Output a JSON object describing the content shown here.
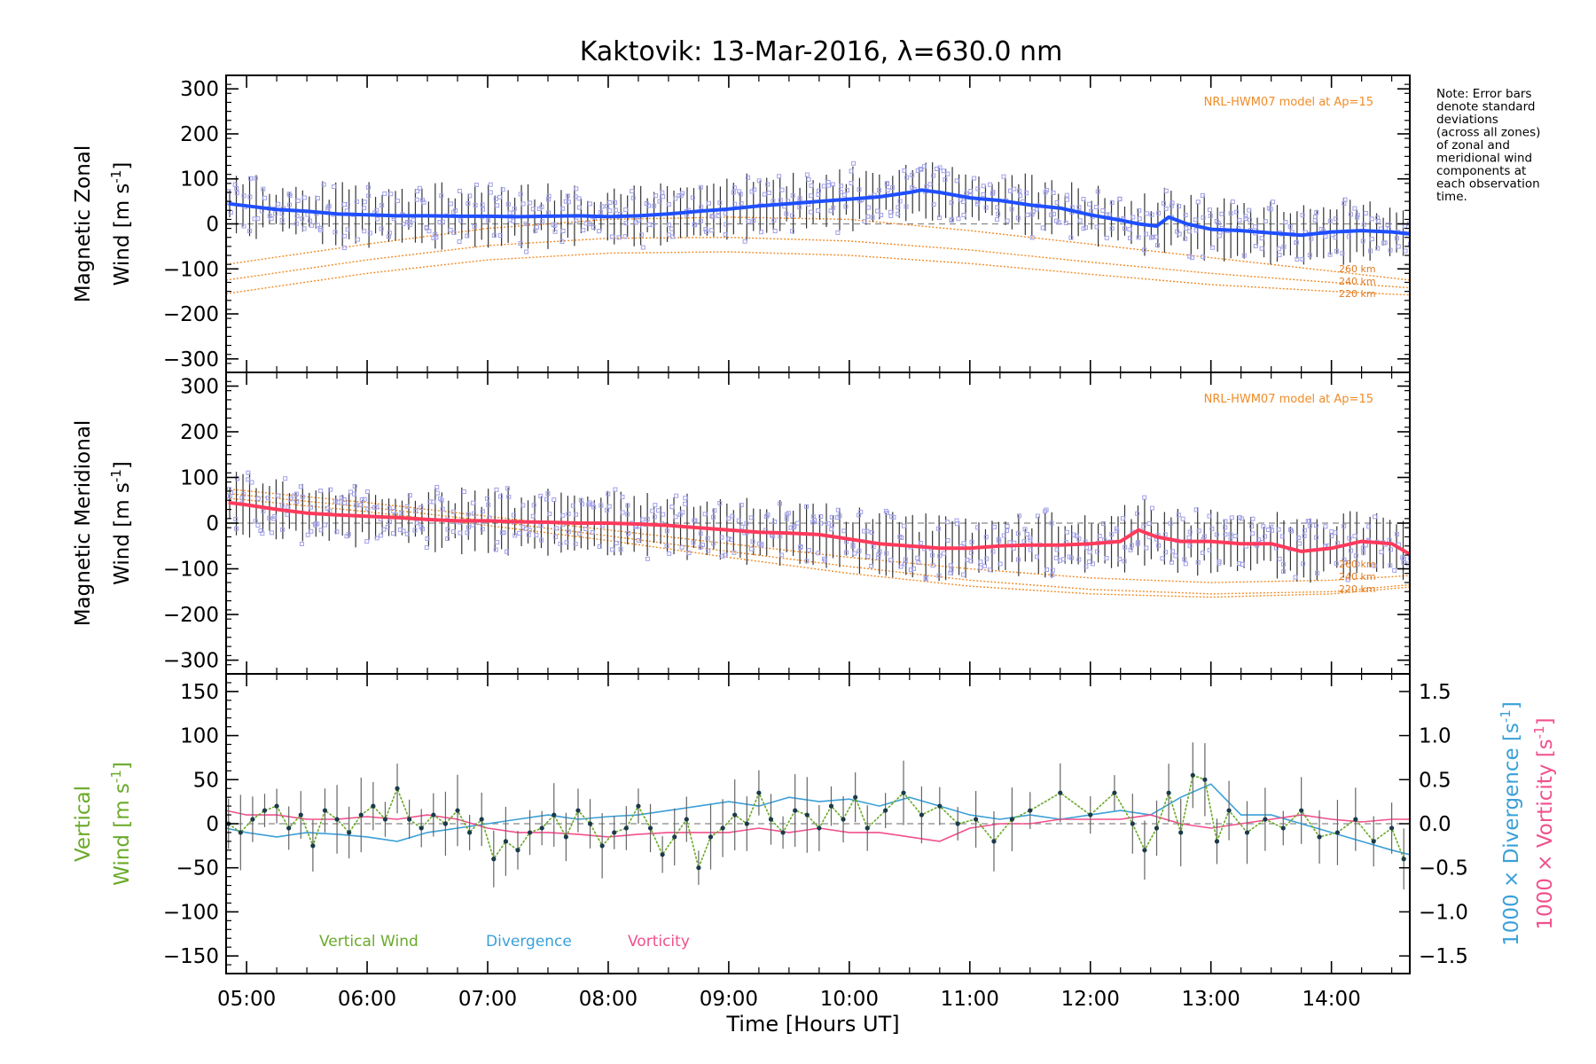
{
  "title": "Kaktovik: 13-Mar-2016, λ=630.0 nm",
  "note": [
    "Note: Error bars",
    "denote standard",
    "deviations",
    "(across all zones)",
    "of zonal and",
    "meridional wind",
    "components at",
    "each observation",
    "time."
  ],
  "colors": {
    "zonal": "#1f4fff",
    "meridional": "#ff3a5c",
    "vertical": "#6aaa2a",
    "divergence": "#3aa0d8",
    "vorticity": "#f0508c",
    "model": "#f08c28",
    "samples": "#a0a0e8",
    "errorbar": "#333333"
  },
  "x_axis": {
    "label": "Time [Hours UT]",
    "range": [
      4.83,
      14.65
    ],
    "ticks": [
      5,
      6,
      7,
      8,
      9,
      10,
      11,
      12,
      13,
      14
    ],
    "tick_labels": [
      "05:00",
      "06:00",
      "07:00",
      "08:00",
      "09:00",
      "10:00",
      "11:00",
      "12:00",
      "13:00",
      "14:00"
    ]
  },
  "chart_data": [
    {
      "id": "zonal",
      "type": "line",
      "ylabel_line1": "Magnetic Zonal",
      "ylabel_line2": "Wind [m s",
      "ylabel_sup": "-1",
      "ylabel_close": "]",
      "ylim": [
        -330,
        330
      ],
      "yticks": [
        -300,
        -200,
        -100,
        0,
        100,
        200,
        300
      ],
      "model_label": "NRL-HWM07 model at Ap=15",
      "altitudes": [
        "260 km",
        "240 km",
        "220 km"
      ],
      "series_x": [
        4.85,
        5.0,
        5.25,
        5.5,
        5.75,
        6.0,
        6.25,
        6.5,
        6.75,
        7.0,
        7.25,
        7.5,
        7.75,
        8.0,
        8.25,
        8.5,
        8.75,
        9.0,
        9.25,
        9.5,
        9.75,
        10.0,
        10.25,
        10.5,
        10.6,
        10.75,
        11.0,
        11.25,
        11.5,
        11.75,
        12.0,
        12.25,
        12.4,
        12.55,
        12.65,
        12.8,
        13.0,
        13.25,
        13.5,
        13.75,
        14.0,
        14.25,
        14.5,
        14.65
      ],
      "series_y": [
        45,
        40,
        32,
        28,
        22,
        20,
        18,
        18,
        17,
        17,
        16,
        17,
        18,
        16,
        18,
        22,
        28,
        33,
        40,
        45,
        50,
        55,
        60,
        70,
        75,
        70,
        58,
        52,
        42,
        35,
        20,
        8,
        0,
        -5,
        15,
        0,
        -12,
        -15,
        -20,
        -25,
        -18,
        -15,
        -18,
        -22
      ],
      "model_curves": [
        {
          "altitude": "260 km",
          "x": [
            4.83,
            6.0,
            7.0,
            8.0,
            9.0,
            10.0,
            11.0,
            12.0,
            13.0,
            14.0,
            14.65
          ],
          "y": [
            -90,
            -45,
            -10,
            10,
            15,
            10,
            -15,
            -45,
            -75,
            -105,
            -125
          ]
        },
        {
          "altitude": "240 km",
          "x": [
            4.83,
            6.0,
            7.0,
            8.0,
            9.0,
            10.0,
            11.0,
            12.0,
            13.0,
            14.0,
            14.65
          ],
          "y": [
            -125,
            -80,
            -48,
            -32,
            -30,
            -38,
            -58,
            -85,
            -110,
            -130,
            -142
          ]
        },
        {
          "altitude": "220 km",
          "x": [
            4.83,
            6.0,
            7.0,
            8.0,
            9.0,
            10.0,
            11.0,
            12.0,
            13.0,
            14.0,
            14.65
          ],
          "y": [
            -155,
            -110,
            -80,
            -65,
            -62,
            -70,
            -88,
            -112,
            -135,
            -150,
            -158
          ]
        }
      ]
    },
    {
      "id": "meridional",
      "type": "line",
      "ylabel_line1": "Magnetic Meridional",
      "ylabel_line2": "Wind [m s",
      "ylabel_sup": "-1",
      "ylabel_close": "]",
      "ylim": [
        -330,
        330
      ],
      "yticks": [
        -300,
        -200,
        -100,
        0,
        100,
        200,
        300
      ],
      "model_label": "NRL-HWM07 model at Ap=15",
      "altitudes": [
        "260 km",
        "240 km",
        "220 km"
      ],
      "series_x": [
        4.85,
        5.0,
        5.25,
        5.5,
        5.75,
        6.0,
        6.25,
        6.5,
        6.75,
        7.0,
        7.25,
        7.5,
        7.75,
        8.0,
        8.25,
        8.5,
        8.75,
        9.0,
        9.25,
        9.5,
        9.75,
        10.0,
        10.25,
        10.5,
        10.75,
        11.0,
        11.25,
        11.5,
        11.75,
        12.0,
        12.25,
        12.4,
        12.55,
        12.75,
        13.0,
        13.25,
        13.5,
        13.75,
        14.0,
        14.25,
        14.5,
        14.65
      ],
      "series_y": [
        45,
        40,
        30,
        22,
        18,
        15,
        12,
        8,
        5,
        5,
        3,
        2,
        0,
        0,
        -2,
        -5,
        -10,
        -15,
        -20,
        -22,
        -25,
        -35,
        -45,
        -50,
        -55,
        -55,
        -50,
        -48,
        -48,
        -45,
        -40,
        -15,
        -30,
        -40,
        -40,
        -45,
        -45,
        -62,
        -55,
        -40,
        -45,
        -68
      ],
      "model_curves": [
        {
          "altitude": "260 km",
          "x": [
            4.83,
            6.0,
            7.0,
            8.0,
            9.0,
            10.0,
            11.0,
            12.0,
            13.0,
            14.0,
            14.65
          ],
          "y": [
            75,
            45,
            15,
            -15,
            -45,
            -75,
            -100,
            -120,
            -130,
            -125,
            -115
          ]
        },
        {
          "altitude": "240 km",
          "x": [
            4.83,
            6.0,
            7.0,
            8.0,
            9.0,
            10.0,
            11.0,
            12.0,
            13.0,
            14.0,
            14.65
          ],
          "y": [
            65,
            35,
            5,
            -28,
            -62,
            -95,
            -125,
            -145,
            -155,
            -150,
            -135
          ]
        },
        {
          "altitude": "220 km",
          "x": [
            4.83,
            6.0,
            7.0,
            8.0,
            9.0,
            10.0,
            11.0,
            12.0,
            13.0,
            14.0,
            14.65
          ],
          "y": [
            55,
            25,
            -5,
            -38,
            -75,
            -110,
            -138,
            -155,
            -162,
            -155,
            -140
          ]
        }
      ]
    },
    {
      "id": "vertical",
      "type": "line",
      "ylabel_line1": "Vertical",
      "ylabel_line2": "Wind [m s",
      "ylabel_sup": "-1",
      "ylabel_close": "]",
      "ylim": [
        -170,
        170
      ],
      "yticks": [
        -150,
        -100,
        -50,
        0,
        50,
        100,
        150
      ],
      "y2label_divergence": "1000 × Divergence [s",
      "y2label_vorticity": "1000 × Vorticity [s",
      "y2label_sup": "-1",
      "y2label_close": "]",
      "y2lim": [
        -1.7,
        1.7
      ],
      "y2ticks": [
        -1.5,
        -1.0,
        -0.5,
        0.0,
        0.5,
        1.0,
        1.5
      ],
      "y2tick_labels": [
        "−1.5",
        "−1.0",
        "−0.5",
        "0.0",
        "0.5",
        "1.0",
        "1.5"
      ],
      "legend": [
        "Vertical Wind",
        "Divergence",
        "Vorticity"
      ],
      "vertical_x": [
        4.85,
        4.95,
        5.05,
        5.15,
        5.25,
        5.35,
        5.45,
        5.55,
        5.65,
        5.75,
        5.85,
        5.95,
        6.05,
        6.15,
        6.25,
        6.35,
        6.45,
        6.55,
        6.65,
        6.75,
        6.85,
        6.95,
        7.05,
        7.15,
        7.25,
        7.35,
        7.45,
        7.55,
        7.65,
        7.75,
        7.85,
        7.95,
        8.05,
        8.15,
        8.25,
        8.35,
        8.45,
        8.55,
        8.65,
        8.75,
        8.85,
        8.95,
        9.05,
        9.15,
        9.25,
        9.35,
        9.45,
        9.55,
        9.65,
        9.75,
        9.85,
        9.95,
        10.05,
        10.15,
        10.3,
        10.45,
        10.6,
        10.75,
        10.9,
        11.05,
        11.2,
        11.35,
        11.5,
        11.75,
        12.0,
        12.2,
        12.35,
        12.45,
        12.55,
        12.65,
        12.75,
        12.85,
        12.95,
        13.05,
        13.15,
        13.3,
        13.45,
        13.6,
        13.75,
        13.9,
        14.05,
        14.2,
        14.35,
        14.5,
        14.6
      ],
      "vertical_y": [
        0,
        -10,
        5,
        15,
        20,
        -5,
        10,
        -25,
        15,
        5,
        -10,
        10,
        20,
        5,
        40,
        5,
        -5,
        10,
        0,
        15,
        -10,
        5,
        -40,
        -20,
        -30,
        -10,
        -5,
        10,
        -15,
        15,
        0,
        -25,
        -10,
        -5,
        20,
        -5,
        -35,
        -15,
        5,
        -50,
        -15,
        -5,
        10,
        0,
        35,
        5,
        -10,
        15,
        10,
        -5,
        20,
        5,
        30,
        -5,
        15,
        35,
        10,
        20,
        0,
        5,
        -20,
        5,
        15,
        35,
        10,
        35,
        0,
        -30,
        -5,
        35,
        -10,
        55,
        50,
        -20,
        15,
        -10,
        5,
        -5,
        15,
        -15,
        -10,
        5,
        -20,
        -5,
        -40
      ],
      "divergence_x": [
        4.83,
        5.0,
        5.25,
        5.5,
        5.75,
        6.0,
        6.25,
        6.5,
        6.75,
        7.0,
        7.25,
        7.5,
        7.75,
        8.0,
        8.25,
        8.5,
        8.75,
        9.0,
        9.25,
        9.5,
        9.75,
        10.0,
        10.25,
        10.5,
        10.75,
        11.0,
        11.25,
        11.5,
        11.75,
        12.0,
        12.25,
        12.5,
        12.75,
        13.0,
        13.25,
        13.5,
        13.75,
        14.0,
        14.25,
        14.5,
        14.65
      ],
      "divergence_y": [
        -0.05,
        -0.1,
        -0.15,
        -0.1,
        -0.12,
        -0.15,
        -0.2,
        -0.1,
        -0.05,
        0.0,
        0.05,
        0.1,
        0.05,
        0.08,
        0.1,
        0.15,
        0.2,
        0.25,
        0.2,
        0.3,
        0.25,
        0.28,
        0.2,
        0.3,
        0.2,
        0.1,
        0.05,
        0.1,
        0.05,
        0.1,
        0.15,
        0.1,
        0.3,
        0.45,
        0.1,
        0.1,
        0.0,
        -0.1,
        -0.2,
        -0.3,
        -0.35
      ],
      "vorticity_x": [
        4.83,
        5.0,
        5.25,
        5.5,
        5.75,
        6.0,
        6.25,
        6.5,
        6.75,
        7.0,
        7.25,
        7.5,
        7.75,
        8.0,
        8.25,
        8.5,
        8.75,
        9.0,
        9.25,
        9.5,
        9.75,
        10.0,
        10.25,
        10.5,
        10.75,
        11.0,
        11.25,
        11.5,
        11.75,
        12.0,
        12.25,
        12.5,
        12.75,
        13.0,
        13.25,
        13.5,
        13.75,
        14.0,
        14.25,
        14.5,
        14.65
      ],
      "vorticity_y": [
        0.15,
        0.1,
        0.1,
        0.05,
        0.05,
        0.08,
        0.05,
        0.1,
        0.05,
        -0.05,
        -0.1,
        -0.1,
        -0.12,
        -0.15,
        -0.12,
        -0.1,
        -0.1,
        -0.1,
        -0.05,
        -0.1,
        -0.05,
        -0.1,
        -0.1,
        -0.15,
        -0.2,
        -0.05,
        0.0,
        0.0,
        0.05,
        0.05,
        0.05,
        0.1,
        0.0,
        -0.05,
        0.0,
        0.05,
        0.1,
        0.05,
        0.02,
        0.05,
        0.05
      ]
    }
  ]
}
